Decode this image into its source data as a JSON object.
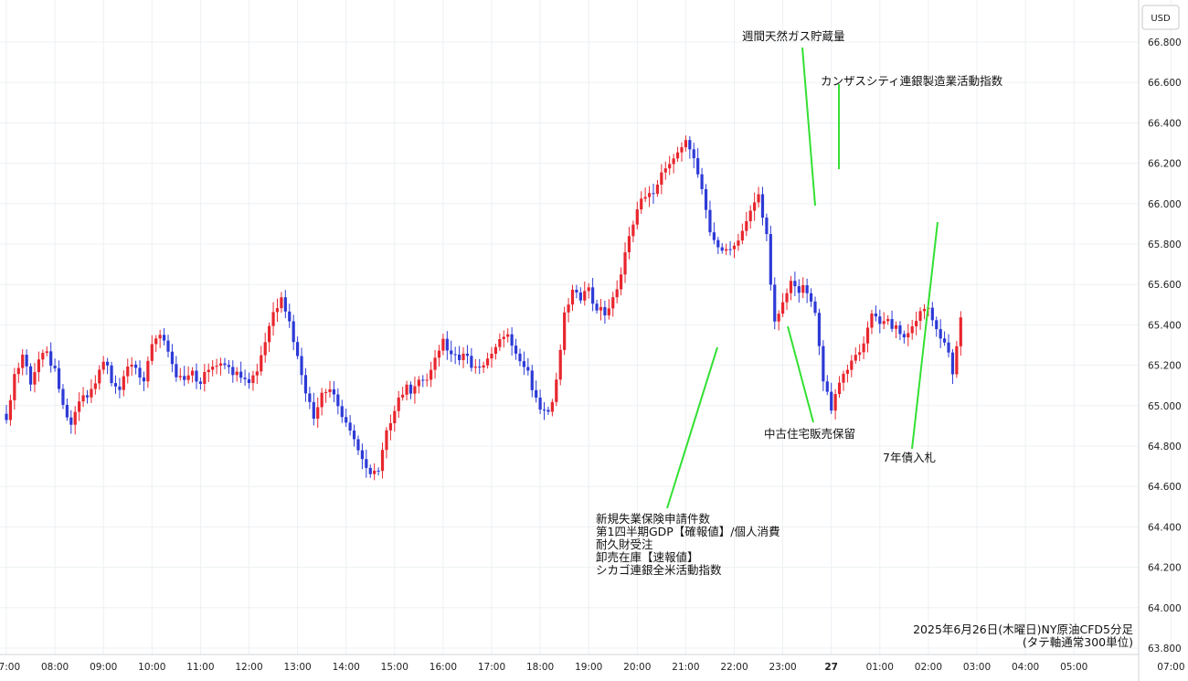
{
  "chart_data": {
    "type": "candlestick",
    "currency": "USD",
    "caption": [
      "2025年6月26日(木曜日)NY原油CFD5分足",
      "(タテ軸通常300単位)"
    ],
    "ylim": [
      63.8,
      66.9
    ],
    "y_ticks": [
      "66.800",
      "66.600",
      "66.400",
      "66.200",
      "66.000",
      "65.800",
      "65.600",
      "65.400",
      "65.200",
      "65.000",
      "64.800",
      "64.600",
      "64.400",
      "64.200",
      "64.000",
      "63.800"
    ],
    "x_ticks": [
      "07:00",
      "08:00",
      "09:00",
      "10:00",
      "11:00",
      "12:00",
      "13:00",
      "14:00",
      "15:00",
      "16:00",
      "17:00",
      "18:00",
      "19:00",
      "20:00",
      "21:00",
      "22:00",
      "23:00",
      "27",
      "01:00",
      "02:00",
      "03:00",
      "04:00",
      "05:00",
      "07:00"
    ],
    "grid": true,
    "colors": {
      "up": "#e8262e",
      "down": "#2d3ad6",
      "annotation_line": "#33e033"
    },
    "close_path": [
      [
        0,
        64.93
      ],
      [
        2,
        65.18
      ],
      [
        4,
        65.22
      ],
      [
        6,
        65.1
      ],
      [
        8,
        65.22
      ],
      [
        10,
        65.24
      ],
      [
        12,
        65.2
      ],
      [
        14,
        65.03
      ],
      [
        16,
        64.92
      ],
      [
        18,
        65.04
      ],
      [
        20,
        65.02
      ],
      [
        22,
        65.1
      ],
      [
        24,
        65.2
      ],
      [
        26,
        65.14
      ],
      [
        28,
        65.1
      ],
      [
        30,
        65.22
      ],
      [
        32,
        65.2
      ],
      [
        34,
        65.12
      ],
      [
        36,
        65.28
      ],
      [
        38,
        65.34
      ],
      [
        40,
        65.25
      ],
      [
        42,
        65.17
      ],
      [
        44,
        65.13
      ],
      [
        46,
        65.18
      ],
      [
        48,
        65.12
      ],
      [
        50,
        65.15
      ],
      [
        52,
        65.18
      ],
      [
        54,
        65.19
      ],
      [
        56,
        65.18
      ],
      [
        58,
        65.16
      ],
      [
        60,
        65.14
      ],
      [
        62,
        65.18
      ],
      [
        64,
        65.3
      ],
      [
        66,
        65.45
      ],
      [
        68,
        65.51
      ],
      [
        70,
        65.4
      ],
      [
        72,
        65.25
      ],
      [
        74,
        65.08
      ],
      [
        76,
        64.97
      ],
      [
        78,
        65.05
      ],
      [
        80,
        65.08
      ],
      [
        82,
        64.98
      ],
      [
        84,
        64.9
      ],
      [
        86,
        64.84
      ],
      [
        88,
        64.75
      ],
      [
        90,
        64.69
      ],
      [
        92,
        64.7
      ],
      [
        94,
        64.85
      ],
      [
        96,
        64.97
      ],
      [
        98,
        65.05
      ],
      [
        100,
        65.09
      ],
      [
        102,
        65.13
      ],
      [
        104,
        65.16
      ],
      [
        106,
        65.26
      ],
      [
        108,
        65.3
      ],
      [
        110,
        65.24
      ],
      [
        112,
        65.22
      ],
      [
        114,
        65.23
      ],
      [
        116,
        65.2
      ],
      [
        118,
        65.22
      ],
      [
        120,
        65.28
      ],
      [
        122,
        65.36
      ],
      [
        124,
        65.32
      ],
      [
        126,
        65.24
      ],
      [
        128,
        65.18
      ],
      [
        130,
        65.1
      ],
      [
        132,
        65.0
      ],
      [
        134,
        64.97
      ],
      [
        136,
        65.13
      ],
      [
        138,
        65.45
      ],
      [
        140,
        65.55
      ],
      [
        142,
        65.52
      ],
      [
        144,
        65.56
      ],
      [
        146,
        65.5
      ],
      [
        148,
        65.48
      ],
      [
        150,
        65.55
      ],
      [
        152,
        65.64
      ],
      [
        154,
        65.82
      ],
      [
        156,
        65.96
      ],
      [
        158,
        66.02
      ],
      [
        160,
        66.06
      ],
      [
        162,
        66.16
      ],
      [
        164,
        66.22
      ],
      [
        166,
        66.26
      ],
      [
        168,
        66.28
      ],
      [
        170,
        66.22
      ],
      [
        172,
        66.05
      ],
      [
        174,
        65.84
      ],
      [
        176,
        65.8
      ],
      [
        178,
        65.78
      ],
      [
        180,
        65.8
      ],
      [
        182,
        65.84
      ],
      [
        184,
        65.94
      ],
      [
        186,
        66.03
      ],
      [
        188,
        65.82
      ],
      [
        190,
        65.44
      ],
      [
        192,
        65.52
      ],
      [
        194,
        65.63
      ],
      [
        196,
        65.58
      ],
      [
        198,
        65.55
      ],
      [
        200,
        65.44
      ],
      [
        202,
        65.1
      ],
      [
        204,
        65.01
      ],
      [
        206,
        65.14
      ],
      [
        208,
        65.21
      ],
      [
        210,
        65.26
      ],
      [
        212,
        65.3
      ],
      [
        214,
        65.44
      ],
      [
        216,
        65.38
      ],
      [
        218,
        65.42
      ],
      [
        220,
        65.4
      ],
      [
        222,
        65.37
      ],
      [
        224,
        65.4
      ],
      [
        226,
        65.48
      ],
      [
        228,
        65.45
      ],
      [
        230,
        65.36
      ],
      [
        232,
        65.3
      ],
      [
        234,
        65.18
      ],
      [
        236,
        65.44
      ]
    ],
    "annotations": [
      {
        "label": [
          "新規失業保険申請件数",
          "第1四半期GDP【確報値】/個人消費",
          "耐久財受注",
          "卸売在庫【速報値】",
          "シカゴ連銀全米活動指数"
        ],
        "at": "21:30"
      },
      {
        "label": [
          "中古住宅販売保留"
        ],
        "at": "23:00"
      },
      {
        "label": [
          "週間天然ガス貯蔵量"
        ],
        "at": "23:30"
      },
      {
        "label": [
          "カンザスシティ連銀製造業活動指数"
        ],
        "at": "00:00"
      },
      {
        "label": [
          "7年債入札"
        ],
        "at": "02:00"
      }
    ]
  }
}
